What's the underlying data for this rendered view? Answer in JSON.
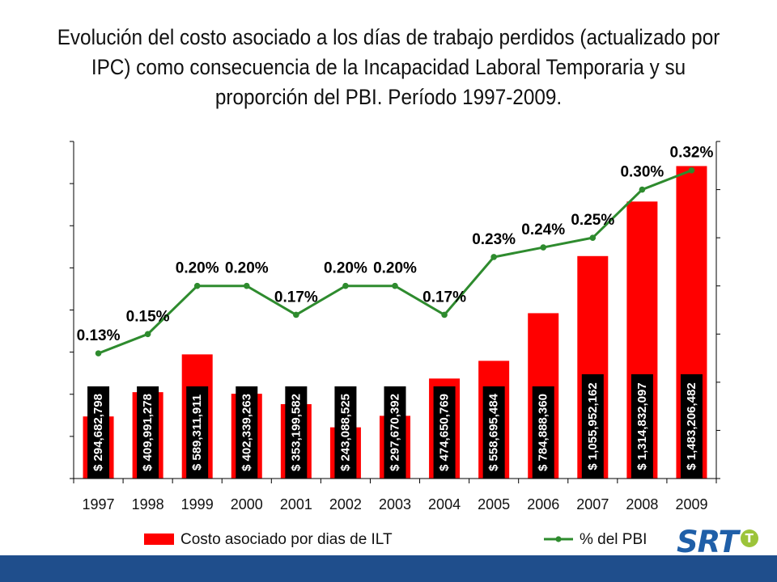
{
  "slide": {
    "title": "Evolución del costo asociado a los días de trabajo perdidos (actualizado por IPC) como consecuencia de la Incapacidad Laboral Temporaria y su proporción del PBI. Período 1997-2009.",
    "logo_text": "SRT",
    "colors": {
      "bars": "#ff0000",
      "line": "#2e8b2e",
      "footer": "#1f4e8c",
      "logo": "#1f5fa8",
      "logo_badge": "#9cc43a"
    }
  },
  "chart_data": {
    "type": "bar+line",
    "categories": [
      "1997",
      "1998",
      "1999",
      "2000",
      "2001",
      "2002",
      "2003",
      "2004",
      "2005",
      "2006",
      "2007",
      "2008",
      "2009"
    ],
    "series": [
      {
        "name": "Costo asociado por dias de ILT",
        "type": "bar",
        "axis": "left",
        "values": [
          294682798,
          409991278,
          589311911,
          402339263,
          353199582,
          243088525,
          297670392,
          474650769,
          558695484,
          784888360,
          1055952162,
          1314832097,
          1483206482
        ],
        "labels": [
          "$ 294,682,798",
          "$ 409,991,278",
          "$ 589,311,911",
          "$ 402,339,263",
          "$ 353,199,582",
          "$ 243,088,525",
          "$ 297,670,392",
          "$ 474,650,769",
          "$ 558,695,484",
          "$ 784,888,360",
          "$ 1,055,952,162",
          "$ 1,314,832,097",
          "$ 1,483,206,482"
        ]
      },
      {
        "name": "% del PBI",
        "type": "line",
        "axis": "right",
        "values": [
          0.13,
          0.15,
          0.2,
          0.2,
          0.17,
          0.2,
          0.2,
          0.17,
          0.23,
          0.24,
          0.25,
          0.3,
          0.32
        ],
        "labels": [
          "0.13%",
          "0.15%",
          "0.20%",
          "0.20%",
          "0.17%",
          "0.20%",
          "0.20%",
          "0.17%",
          "0.23%",
          "0.24%",
          "0.25%",
          "0.30%",
          "0.32%"
        ]
      }
    ],
    "left_axis": {
      "ylim": [
        0,
        1600000000
      ],
      "tick_step": 200000000,
      "tick_labels_shown": false
    },
    "right_axis": {
      "ylim": [
        0,
        0.35
      ],
      "tick_step": 0.05,
      "tick_labels_shown": false
    },
    "grid": false,
    "legend_position": "bottom"
  }
}
